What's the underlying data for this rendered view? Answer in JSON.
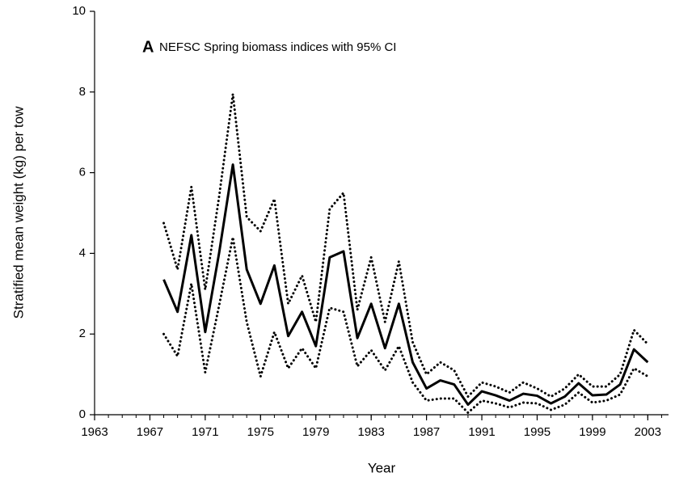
{
  "chart_data": {
    "type": "line",
    "panel_label": "A",
    "annotation": "NEFSC Spring biomass indices with 95% CI",
    "x_label": "Year",
    "y_label": "Stratified mean weight (kg) per tow",
    "x": [
      1968,
      1969,
      1970,
      1971,
      1972,
      1973,
      1974,
      1975,
      1976,
      1977,
      1978,
      1979,
      1980,
      1981,
      1982,
      1983,
      1984,
      1985,
      1986,
      1987,
      1988,
      1989,
      1990,
      1991,
      1992,
      1993,
      1994,
      1995,
      1996,
      1997,
      1998,
      1999,
      2000,
      2001,
      2002,
      2003
    ],
    "series": [
      {
        "color": "#000000",
        "style": "dotted",
        "values": [
          4.75,
          3.6,
          5.65,
          3.1,
          5.4,
          7.95,
          4.9,
          4.55,
          5.35,
          2.75,
          3.45,
          2.3,
          5.1,
          5.5,
          2.6,
          3.9,
          2.3,
          3.8,
          1.8,
          1.0,
          1.3,
          1.1,
          0.45,
          0.8,
          0.7,
          0.55,
          0.8,
          0.65,
          0.45,
          0.65,
          1.0,
          0.7,
          0.7,
          1.0,
          2.1,
          1.75
        ]
      },
      {
        "color": "#000000",
        "style": "dotted",
        "values": [
          2.0,
          1.45,
          3.25,
          1.05,
          2.7,
          4.4,
          2.3,
          0.95,
          2.05,
          1.15,
          1.65,
          1.15,
          2.65,
          2.55,
          1.2,
          1.6,
          1.1,
          1.7,
          0.8,
          0.35,
          0.4,
          0.4,
          0.05,
          0.35,
          0.28,
          0.18,
          0.3,
          0.28,
          0.12,
          0.25,
          0.55,
          0.3,
          0.35,
          0.5,
          1.15,
          0.95
        ]
      },
      {
        "color": "#000000",
        "style": "solid",
        "values": [
          3.35,
          2.55,
          4.45,
          2.05,
          4.0,
          6.2,
          3.6,
          2.75,
          3.7,
          1.95,
          2.55,
          1.7,
          3.9,
          4.05,
          1.9,
          2.75,
          1.65,
          2.75,
          1.3,
          0.65,
          0.85,
          0.75,
          0.25,
          0.58,
          0.48,
          0.35,
          0.52,
          0.47,
          0.28,
          0.45,
          0.78,
          0.48,
          0.5,
          0.75,
          1.62,
          1.3
        ]
      }
    ],
    "xlim": [
      1963,
      2004.5
    ],
    "xticks": [
      1963,
      1967,
      1971,
      1975,
      1979,
      1983,
      1987,
      1991,
      1995,
      1999,
      2003
    ],
    "xminorticks": [
      1963,
      1964,
      1965,
      1966,
      1967,
      1968,
      1969,
      1970,
      1971,
      1972,
      1973,
      1974,
      1975,
      1976,
      1977,
      1978,
      1979,
      1980,
      1981,
      1982,
      1983,
      1984,
      1985,
      1986,
      1987,
      1988,
      1989,
      1990,
      1991,
      1992,
      1993,
      1994,
      1995,
      1996,
      1997,
      1998,
      1999,
      2000,
      2001,
      2002,
      2003,
      2004
    ],
    "ylim": [
      0,
      10
    ],
    "yticks": [
      0,
      2,
      4,
      6,
      8,
      10
    ],
    "grid": false
  }
}
